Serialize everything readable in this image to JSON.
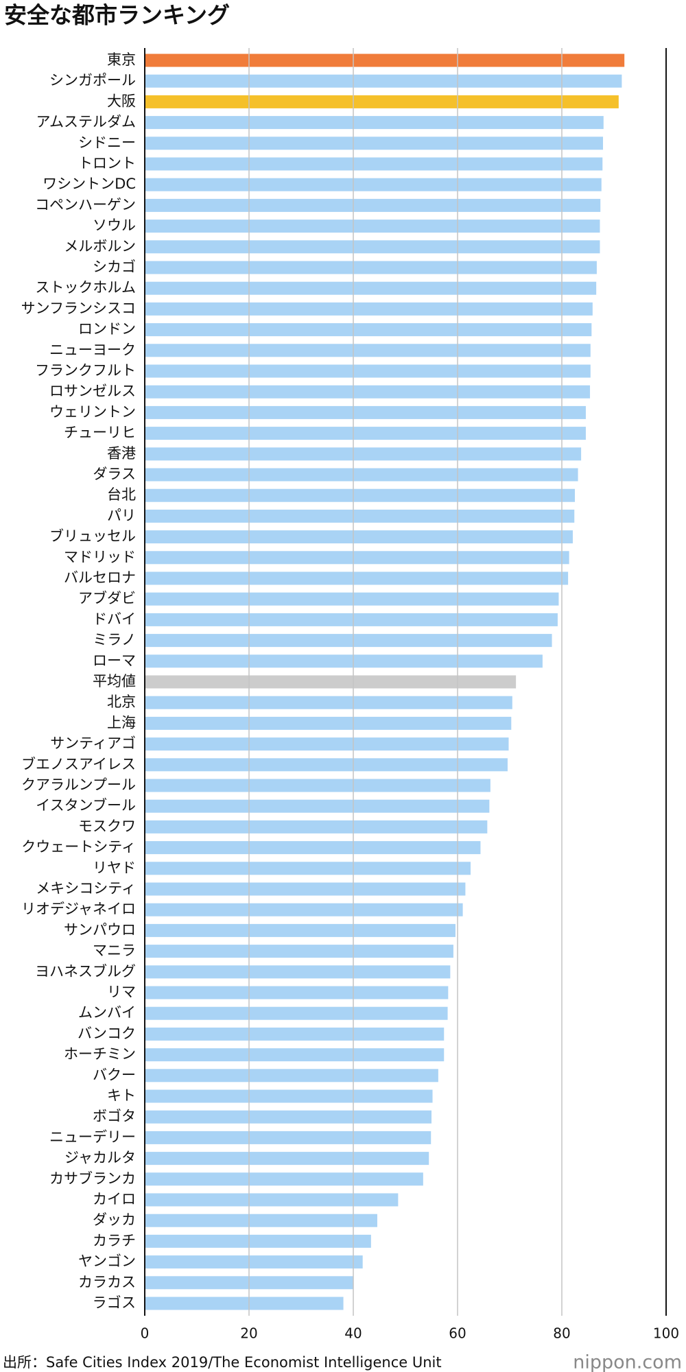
{
  "chart_data": {
    "type": "barh",
    "title": "安全な都市ランキング",
    "categories": [
      "東京",
      "シンガポール",
      "大阪",
      "アムステルダム",
      "シドニー",
      "トロント",
      "ワシントンDC",
      "コペンハーゲン",
      "ソウル",
      "メルボルン",
      "シカゴ",
      "ストックホルム",
      "サンフランシスコ",
      "ロンドン",
      "ニューヨーク",
      "フランクフルト",
      "ロサンゼルス",
      "ウェリントン",
      "チューリヒ",
      "香港",
      "ダラス",
      "台北",
      "パリ",
      "ブリュッセル",
      "マドリッド",
      "バルセロナ",
      "アブダビ",
      "ドバイ",
      "ミラノ",
      "ローマ",
      "平均値",
      "北京",
      "上海",
      "サンティアゴ",
      "ブエノスアイレス",
      "クアラルンプール",
      "イスタンブール",
      "モスクワ",
      "クウェートシティ",
      "リヤド",
      "メキシコシティ",
      "リオデジャネイロ",
      "サンパウロ",
      "マニラ",
      "ヨハネスブルグ",
      "リマ",
      "ムンバイ",
      "バンコク",
      "ホーチミン",
      "バクー",
      "キト",
      "ボゴタ",
      "ニューデリー",
      "ジャカルタ",
      "カサブランカ",
      "カイロ",
      "ダッカ",
      "カラチ",
      "ヤンゴン",
      "カラカス",
      "ラゴス"
    ],
    "values": [
      92.0,
      91.5,
      90.9,
      88.0,
      87.9,
      87.8,
      87.6,
      87.4,
      87.3,
      87.3,
      86.7,
      86.6,
      85.9,
      85.7,
      85.5,
      85.5,
      85.4,
      84.6,
      84.6,
      83.7,
      83.1,
      82.5,
      82.4,
      82.1,
      81.4,
      81.2,
      79.4,
      79.2,
      78.1,
      76.3,
      71.2,
      70.5,
      70.3,
      69.8,
      69.6,
      66.3,
      66.1,
      65.7,
      64.4,
      62.5,
      61.5,
      61.0,
      59.6,
      59.2,
      58.6,
      58.2,
      58.1,
      57.4,
      57.4,
      56.3,
      55.2,
      55.0,
      54.9,
      54.5,
      53.4,
      48.6,
      44.6,
      43.4,
      41.8,
      40.0,
      38.1
    ],
    "colors": [
      "#f07c3a",
      "#a9d3f5",
      "#f5c02a",
      "#a9d3f5",
      "#a9d3f5",
      "#a9d3f5",
      "#a9d3f5",
      "#a9d3f5",
      "#a9d3f5",
      "#a9d3f5",
      "#a9d3f5",
      "#a9d3f5",
      "#a9d3f5",
      "#a9d3f5",
      "#a9d3f5",
      "#a9d3f5",
      "#a9d3f5",
      "#a9d3f5",
      "#a9d3f5",
      "#a9d3f5",
      "#a9d3f5",
      "#a9d3f5",
      "#a9d3f5",
      "#a9d3f5",
      "#a9d3f5",
      "#a9d3f5",
      "#a9d3f5",
      "#a9d3f5",
      "#a9d3f5",
      "#a9d3f5",
      "#cccccc",
      "#a9d3f5",
      "#a9d3f5",
      "#a9d3f5",
      "#a9d3f5",
      "#a9d3f5",
      "#a9d3f5",
      "#a9d3f5",
      "#a9d3f5",
      "#a9d3f5",
      "#a9d3f5",
      "#a9d3f5",
      "#a9d3f5",
      "#a9d3f5",
      "#a9d3f5",
      "#a9d3f5",
      "#a9d3f5",
      "#a9d3f5",
      "#a9d3f5",
      "#a9d3f5",
      "#a9d3f5",
      "#a9d3f5",
      "#a9d3f5",
      "#a9d3f5",
      "#a9d3f5",
      "#a9d3f5",
      "#a9d3f5",
      "#a9d3f5",
      "#a9d3f5",
      "#a9d3f5",
      "#a9d3f5"
    ],
    "xlim": [
      0,
      100
    ],
    "xticks": [
      0,
      20,
      40,
      60,
      80,
      100
    ],
    "grid": true,
    "source": "出所：Safe Cities Index 2019/The Economist Intelligence Unit",
    "logo": "nippon.com"
  }
}
